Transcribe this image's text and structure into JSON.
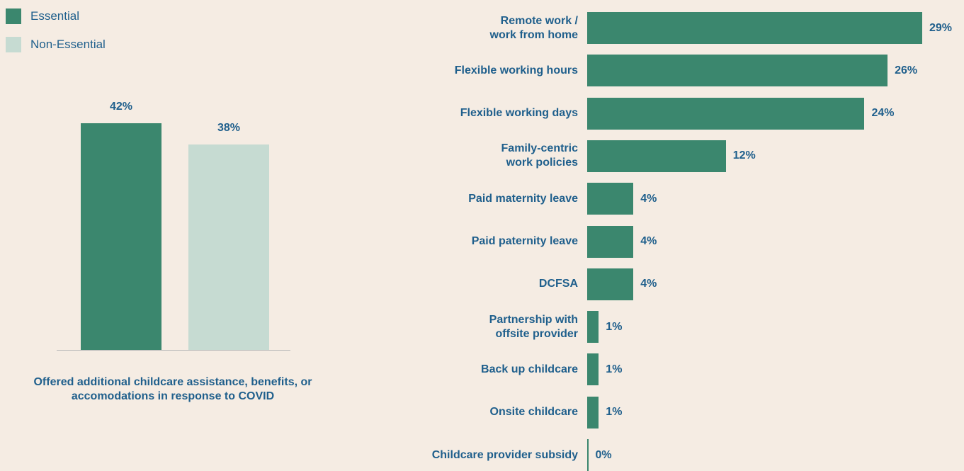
{
  "chart_data": [
    {
      "type": "bar",
      "categories": [
        "Offered additional childcare assistance, benefits, or accomodations in response to COVID"
      ],
      "series": [
        {
          "name": "Essential",
          "color": "#3b876e",
          "values": [
            42
          ],
          "value_labels": [
            "42%"
          ]
        },
        {
          "name": "Non-Essential",
          "color": "#c6dbd2",
          "values": [
            38
          ],
          "value_labels": [
            "38%"
          ]
        }
      ],
      "legend": "top-left"
    },
    {
      "type": "hbar",
      "categories": [
        "Remote work /\nwork from home",
        "Flexible working hours",
        "Flexible working days",
        "Family-centric\nwork policies",
        "Paid maternity leave",
        "Paid paternity leave",
        "DCFSA",
        "Partnership with\noffsite provider",
        "Back up childcare",
        "Onsite childcare",
        "Childcare provider subsidy"
      ],
      "values": [
        29,
        26,
        24,
        12,
        4,
        4,
        4,
        1,
        1,
        1,
        0
      ],
      "value_labels": [
        "29%",
        "26%",
        "24%",
        "12%",
        "4%",
        "4%",
        "4%",
        "1%",
        "1%",
        "1%",
        "0%"
      ],
      "color": "#3b876e"
    }
  ]
}
